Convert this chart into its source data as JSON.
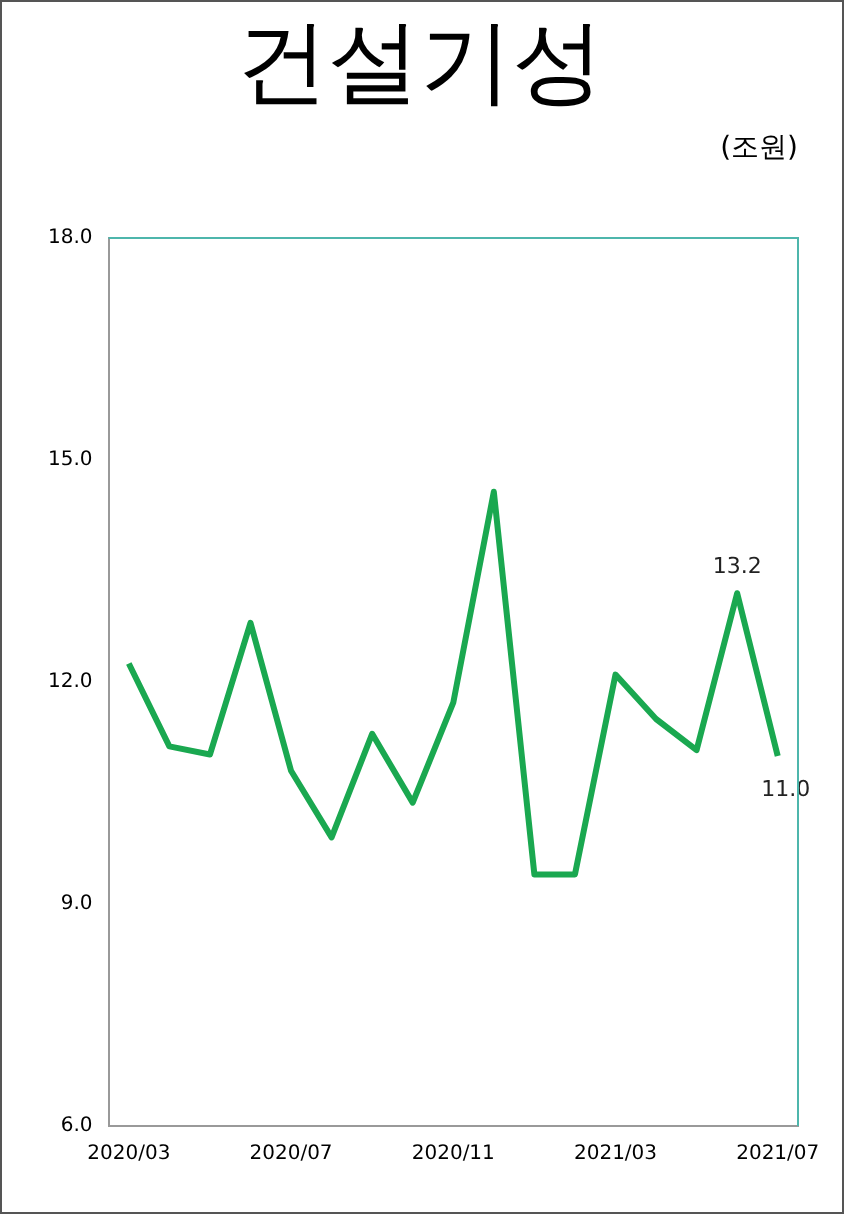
{
  "chart_data": {
    "type": "line",
    "title": "건설기성",
    "subtitle": "(조원)",
    "categories": [
      "2020/03",
      null,
      null,
      null,
      "2020/07",
      null,
      null,
      null,
      "2020/11",
      null,
      null,
      null,
      "2021/03",
      null,
      null,
      null,
      "2021/07"
    ],
    "series": [
      {
        "color": "#1aa850",
        "values": [
          12.25,
          11.13,
          11.02,
          12.8,
          10.8,
          9.9,
          11.3,
          10.37,
          11.72,
          14.57,
          9.4,
          9.4,
          12.1,
          11.5,
          11.08,
          13.2,
          11.0
        ],
        "value_labels": [
          null,
          null,
          null,
          null,
          null,
          null,
          null,
          null,
          null,
          null,
          null,
          null,
          null,
          null,
          null,
          "13.2",
          "11.0"
        ]
      }
    ],
    "ylim": [
      6,
      18
    ],
    "yticks": [
      {
        "value": 6,
        "label": "6.0"
      },
      {
        "value": 9,
        "label": "9.0"
      },
      {
        "value": 12,
        "label": "12.0"
      },
      {
        "value": 15,
        "label": "15.0"
      },
      {
        "value": 18,
        "label": "18.0"
      }
    ],
    "grid": false,
    "legend": false,
    "marker": "none",
    "line_style": "solid"
  }
}
